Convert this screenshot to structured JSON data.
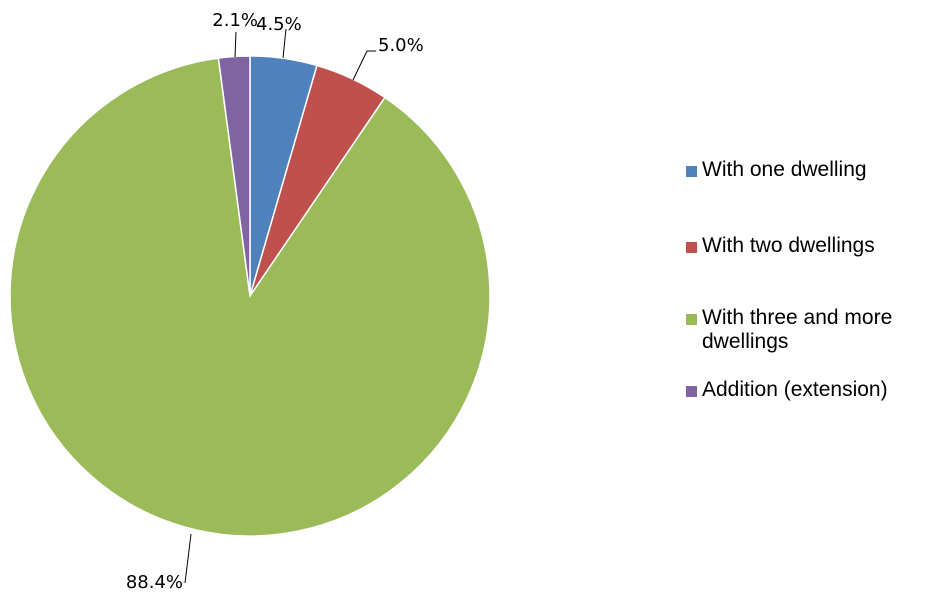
{
  "chart_data": {
    "type": "pie",
    "start_angle_deg": 0,
    "direction": "clockwise",
    "legend_position": "right",
    "slices": [
      {
        "name": "With one dwelling",
        "value": 4.5,
        "label": "4.5%",
        "color": "#4F81BD"
      },
      {
        "name": "With two dwellings",
        "value": 5.0,
        "label": "5.0%",
        "color": "#C0504D"
      },
      {
        "name": "With three and more dwellings",
        "value": 88.4,
        "label": "88.4%",
        "color": "#9BBB59"
      },
      {
        "name": "Addition (extension)",
        "value": 2.1,
        "label": "2.1%",
        "color": "#8064A2"
      }
    ]
  }
}
